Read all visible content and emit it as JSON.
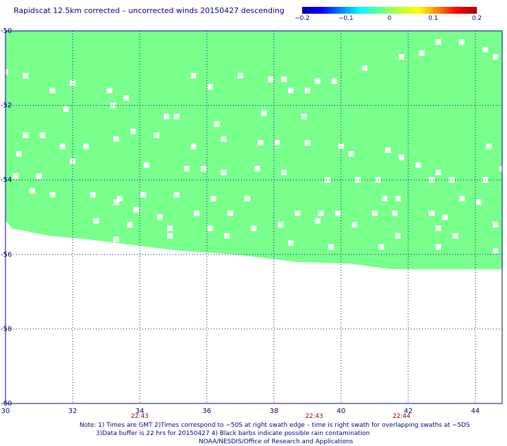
{
  "title": "Rapidscat 12.5km corrected – uncorrected winds 20150427 descending",
  "colorbar": {
    "ticks": [
      "−0.2",
      "−0.1",
      "0",
      "0.1",
      "0.2"
    ],
    "tick_values": [
      -0.2,
      -0.1,
      0,
      0.1,
      0.2
    ],
    "colors": [
      "#0000a0",
      "#0000ff",
      "#0080ff",
      "#00ffff",
      "#60ff90",
      "#c0ff30",
      "#ffff00",
      "#ff8000",
      "#ff0000",
      "#a00000"
    ]
  },
  "chart_data": {
    "type": "heatmap",
    "title": "Rapidscat 12.5km corrected – uncorrected winds 20150427 descending",
    "x_ticks": [
      "30",
      "32",
      "34",
      "36",
      "38",
      "40",
      "42",
      "44"
    ],
    "y_ticks": [
      "-50",
      "-52",
      "-54",
      "-56",
      "-58",
      "-60"
    ],
    "xlim": [
      30,
      44.8
    ],
    "ylim": [
      -60,
      -50
    ],
    "grid": true,
    "fill_color": "#78ff8c",
    "swath_value": 0,
    "time_labels": [
      {
        "x": 34,
        "label": "22:43"
      },
      {
        "x": 39.2,
        "label": "22:43"
      },
      {
        "x": 41.8,
        "label": "22:44"
      }
    ],
    "swath_bottom": [
      [
        30.0,
        -55.1
      ],
      [
        30.2,
        -55.3
      ],
      [
        31.3,
        -55.5
      ],
      [
        32.5,
        -55.6
      ],
      [
        33.8,
        -55.75
      ],
      [
        35.2,
        -55.9
      ],
      [
        36.8,
        -56.0
      ],
      [
        38.7,
        -56.2
      ],
      [
        40.3,
        -56.25
      ],
      [
        41.5,
        -56.4
      ],
      [
        44.8,
        -56.4
      ]
    ],
    "missing_cells": [
      [
        30.0,
        -51.1
      ],
      [
        30.6,
        -51.2
      ],
      [
        32.0,
        -51.4
      ],
      [
        31.4,
        -51.6
      ],
      [
        33.1,
        -51.6
      ],
      [
        33.6,
        -51.8
      ],
      [
        35.6,
        -51.2
      ],
      [
        36.1,
        -51.5
      ],
      [
        37.0,
        -51.2
      ],
      [
        37.9,
        -51.3
      ],
      [
        39.3,
        -51.35
      ],
      [
        39.8,
        -51.35
      ],
      [
        38.5,
        -51.6
      ],
      [
        39.0,
        -51.6
      ],
      [
        38.3,
        -51.3
      ],
      [
        40.7,
        -51.0
      ],
      [
        41.8,
        -50.7
      ],
      [
        42.4,
        -50.6
      ],
      [
        42.9,
        -50.3
      ],
      [
        43.6,
        -50.3
      ],
      [
        44.3,
        -50.5
      ],
      [
        44.6,
        -50.7
      ],
      [
        31.8,
        -52.1
      ],
      [
        33.2,
        -52.0
      ],
      [
        34.8,
        -52.3
      ],
      [
        35.1,
        -52.3
      ],
      [
        36.3,
        -52.5
      ],
      [
        37.7,
        -52.2
      ],
      [
        38.9,
        -52.3
      ],
      [
        30.6,
        -52.8
      ],
      [
        31.1,
        -52.8
      ],
      [
        31.7,
        -53.1
      ],
      [
        32.4,
        -53.1
      ],
      [
        33.3,
        -52.9
      ],
      [
        33.8,
        -52.7
      ],
      [
        34.5,
        -52.8
      ],
      [
        35.6,
        -53.1
      ],
      [
        36.5,
        -52.9
      ],
      [
        37.6,
        -53.0
      ],
      [
        38.1,
        -53.0
      ],
      [
        39.0,
        -53.0
      ],
      [
        40.0,
        -53.1
      ],
      [
        40.3,
        -53.3
      ],
      [
        41.4,
        -53.2
      ],
      [
        41.8,
        -53.4
      ],
      [
        42.3,
        -53.6
      ],
      [
        42.9,
        -53.8
      ],
      [
        44.4,
        -53.1
      ],
      [
        44.8,
        -53.7
      ],
      [
        30.4,
        -53.3
      ],
      [
        32.0,
        -53.5
      ],
      [
        34.2,
        -53.6
      ],
      [
        35.4,
        -53.7
      ],
      [
        35.9,
        -53.7
      ],
      [
        36.5,
        -53.8
      ],
      [
        37.5,
        -53.7
      ],
      [
        38.3,
        -53.8
      ],
      [
        30.3,
        -53.9
      ],
      [
        31.0,
        -53.9
      ],
      [
        39.6,
        -54.0
      ],
      [
        40.5,
        -54.0
      ],
      [
        41.1,
        -54.0
      ],
      [
        42.7,
        -54.0
      ],
      [
        43.3,
        -54.0
      ],
      [
        44.3,
        -54.0
      ],
      [
        30.8,
        -54.3
      ],
      [
        31.4,
        -54.4
      ],
      [
        32.6,
        -54.4
      ],
      [
        33.4,
        -54.5
      ],
      [
        34.1,
        -54.4
      ],
      [
        35.1,
        -54.4
      ],
      [
        36.2,
        -54.5
      ],
      [
        37.2,
        -54.5
      ],
      [
        41.3,
        -54.5
      ],
      [
        41.7,
        -54.5
      ],
      [
        43.6,
        -54.5
      ],
      [
        44.1,
        -54.6
      ],
      [
        33.3,
        -54.6
      ],
      [
        33.9,
        -54.8
      ],
      [
        34.6,
        -55.0
      ],
      [
        35.7,
        -54.9
      ],
      [
        36.7,
        -54.9
      ],
      [
        38.7,
        -54.9
      ],
      [
        39.4,
        -54.9
      ],
      [
        39.9,
        -54.9
      ],
      [
        41.0,
        -54.9
      ],
      [
        41.6,
        -54.9
      ],
      [
        42.7,
        -54.9
      ],
      [
        43.1,
        -55.0
      ],
      [
        44.6,
        -55.2
      ],
      [
        32.7,
        -55.1
      ],
      [
        33.7,
        -55.2
      ],
      [
        34.9,
        -55.3
      ],
      [
        36.1,
        -55.3
      ],
      [
        37.4,
        -55.3
      ],
      [
        38.2,
        -55.2
      ],
      [
        39.3,
        -55.1
      ],
      [
        40.4,
        -55.2
      ],
      [
        42.9,
        -55.3
      ],
      [
        43.4,
        -55.5
      ],
      [
        41.7,
        -55.5
      ],
      [
        38.5,
        -55.7
      ],
      [
        39.7,
        -55.8
      ],
      [
        41.2,
        -55.8
      ],
      [
        42.9,
        -55.8
      ],
      [
        44.6,
        -55.9
      ],
      [
        33.3,
        -55.6
      ],
      [
        34.9,
        -55.5
      ],
      [
        36.6,
        -55.5
      ]
    ]
  },
  "notes": [
    "Note: 1) Times are GMT 2)Times correspond to −50S at right swath edge – time is right swath for overlapping swaths at −5DS",
    "3)Data buffer is 22 hrs for 20150427 4) Black barbs indicate possible rain contamination",
    "NOAA/NESDIS/Office of Research and Applications"
  ]
}
